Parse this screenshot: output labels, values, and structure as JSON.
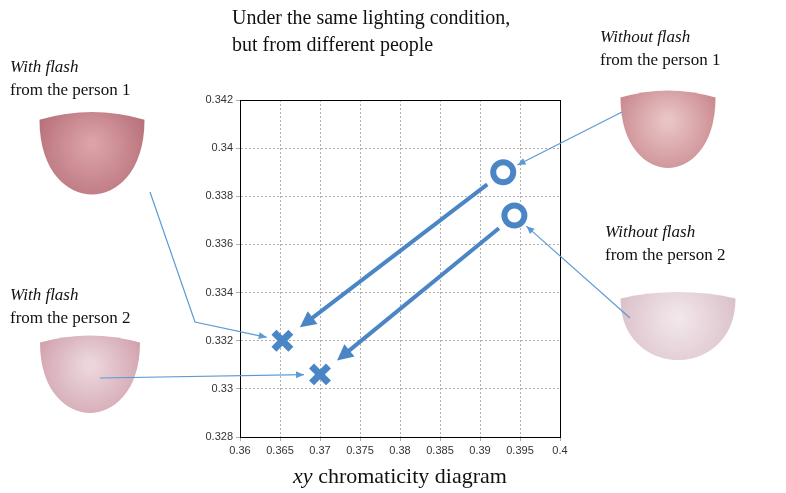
{
  "chart_data": {
    "type": "scatter",
    "title": "Under the same lighting condition, but from different people",
    "x_label": "xy chromaticity diagram",
    "series": [
      {
        "name": "Without flash",
        "marker": "circle",
        "color": "#4a86c5",
        "x": [
          0.3929,
          0.3943
        ],
        "values": [
          0.339,
          0.3372
        ],
        "labels": [
          "from the person 1",
          "from the person 2"
        ]
      },
      {
        "name": "With flash",
        "marker": "cross",
        "color": "#4a86c5",
        "x": [
          0.3653,
          0.37
        ],
        "values": [
          0.332,
          0.3306
        ],
        "labels": [
          "from the person 1",
          "from the person 2"
        ]
      }
    ],
    "xlim": [
      0.36,
      0.4
    ],
    "xticks": [
      0.36,
      0.365,
      0.37,
      0.375,
      0.38,
      0.385,
      0.39,
      0.395,
      0.4
    ],
    "ylim": [
      0.328,
      0.342
    ],
    "yticks": [
      0.328,
      0.33,
      0.332,
      0.334,
      0.336,
      0.338,
      0.34,
      0.342
    ],
    "grid": true
  }
}
